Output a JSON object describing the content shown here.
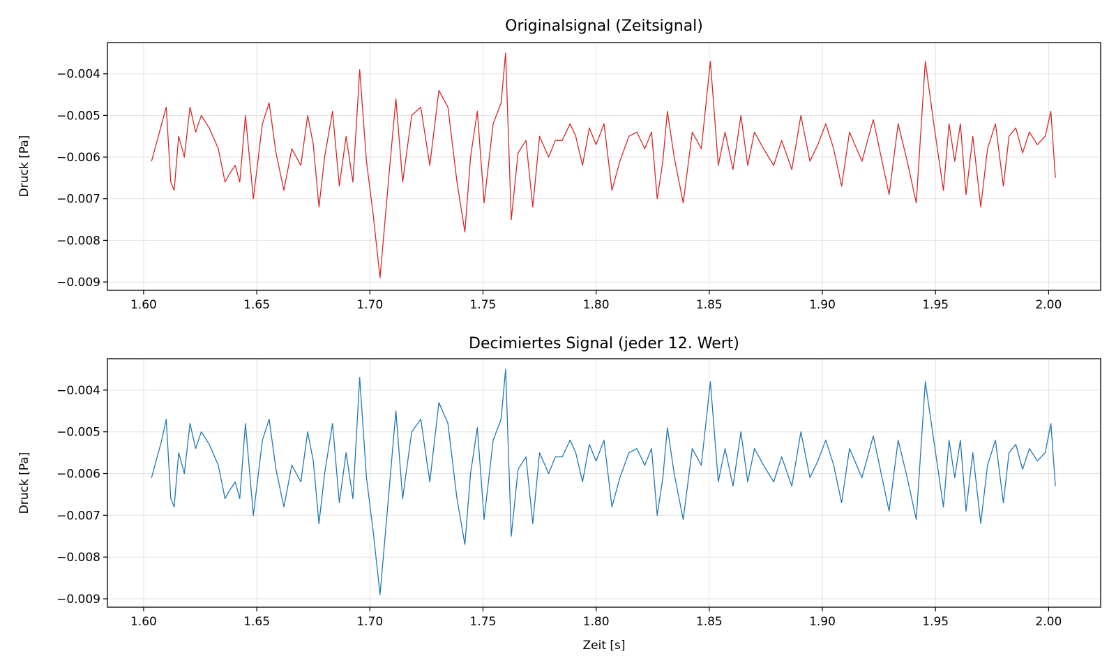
{
  "chart_data": [
    {
      "type": "line",
      "title": "Originalsignal (Zeitsignal)",
      "xlabel": "",
      "ylabel": "Druck [Pa]",
      "xlim": [
        1.584,
        2.023
      ],
      "ylim": [
        -0.0092,
        -0.00325
      ],
      "xticks": [
        1.6,
        1.65,
        1.7,
        1.75,
        1.8,
        1.85,
        1.9,
        1.95,
        2.0
      ],
      "xtick_labels": [
        "1.60",
        "1.65",
        "1.70",
        "1.75",
        "1.80",
        "1.85",
        "1.90",
        "1.95",
        "2.00"
      ],
      "yticks": [
        -0.004,
        -0.005,
        -0.006,
        -0.007,
        -0.008,
        -0.009
      ],
      "ytick_labels": [
        "−0.004",
        "−0.005",
        "−0.006",
        "−0.007",
        "−0.008",
        "−0.009"
      ],
      "grid": true,
      "color": "#d62728",
      "series": [
        {
          "x": [
            1.6035,
            1.606,
            1.608,
            1.61,
            1.612,
            1.6135,
            1.6155,
            1.618,
            1.6205,
            1.623,
            1.6255,
            1.629,
            1.633,
            1.636,
            1.638,
            1.6405,
            1.6425,
            1.645,
            1.6485,
            1.6525,
            1.6555,
            1.6585,
            1.662,
            1.6655,
            1.6695,
            1.6725,
            1.675,
            1.6775,
            1.68,
            1.6835,
            1.6865,
            1.6895,
            1.6925,
            1.6955,
            1.6985,
            1.7015,
            1.7045,
            1.7085,
            1.7115,
            1.7145,
            1.7185,
            1.7225,
            1.7265,
            1.7305,
            1.7345,
            1.7385,
            1.742,
            1.7445,
            1.7475,
            1.7505,
            1.7545,
            1.758,
            1.76,
            1.7625,
            1.7655,
            1.769,
            1.772,
            1.775,
            1.779,
            1.782,
            1.785,
            1.7885,
            1.791,
            1.794,
            1.797,
            1.8,
            1.8035,
            1.807,
            1.8105,
            1.8145,
            1.818,
            1.8215,
            1.8245,
            1.827,
            1.8295,
            1.8315,
            1.8345,
            1.8385,
            1.8425,
            1.8465,
            1.8505,
            1.854,
            1.857,
            1.8605,
            1.864,
            1.867,
            1.87,
            1.874,
            1.8785,
            1.882,
            1.8865,
            1.8905,
            1.8945,
            1.898,
            1.9015,
            1.905,
            1.9085,
            1.912,
            1.9175,
            1.9225,
            1.926,
            1.9295,
            1.9335,
            1.9375,
            1.9415,
            1.9455,
            1.9495,
            1.9535,
            1.956,
            1.9585,
            1.961,
            1.9635,
            1.9665,
            1.97,
            1.973,
            1.9765,
            1.98,
            1.9825,
            1.9855,
            1.9885,
            1.9915,
            1.995,
            1.9985,
            2.001,
            2.003
          ],
          "y": [
            -0.0061,
            -0.0056,
            -0.0052,
            -0.0048,
            -0.0066,
            -0.0068,
            -0.0055,
            -0.006,
            -0.0048,
            -0.0054,
            -0.005,
            -0.0053,
            -0.0058,
            -0.0066,
            -0.0064,
            -0.0062,
            -0.0066,
            -0.005,
            -0.007,
            -0.0052,
            -0.0047,
            -0.0059,
            -0.0068,
            -0.0058,
            -0.0062,
            -0.005,
            -0.0057,
            -0.0072,
            -0.006,
            -0.0049,
            -0.0067,
            -0.0055,
            -0.0066,
            -0.0039,
            -0.0061,
            -0.0074,
            -0.0089,
            -0.0064,
            -0.0046,
            -0.0066,
            -0.005,
            -0.0048,
            -0.0062,
            -0.0044,
            -0.0048,
            -0.0066,
            -0.0078,
            -0.006,
            -0.0049,
            -0.0071,
            -0.0052,
            -0.0047,
            -0.0035,
            -0.0075,
            -0.0059,
            -0.0056,
            -0.0072,
            -0.0055,
            -0.006,
            -0.0056,
            -0.0056,
            -0.0052,
            -0.0055,
            -0.0062,
            -0.0053,
            -0.0057,
            -0.0052,
            -0.0068,
            -0.0061,
            -0.0055,
            -0.0054,
            -0.0058,
            -0.0054,
            -0.007,
            -0.0061,
            -0.0049,
            -0.006,
            -0.0071,
            -0.0054,
            -0.0058,
            -0.0037,
            -0.0062,
            -0.0054,
            -0.0063,
            -0.005,
            -0.0062,
            -0.0054,
            -0.0058,
            -0.0062,
            -0.0056,
            -0.0063,
            -0.005,
            -0.0061,
            -0.0057,
            -0.0052,
            -0.0058,
            -0.0067,
            -0.0054,
            -0.0061,
            -0.0051,
            -0.006,
            -0.0069,
            -0.0052,
            -0.0061,
            -0.0071,
            -0.0037,
            -0.0053,
            -0.0068,
            -0.0052,
            -0.0061,
            -0.0052,
            -0.0069,
            -0.0055,
            -0.0072,
            -0.0058,
            -0.0052,
            -0.0067,
            -0.0055,
            -0.0053,
            -0.0059,
            -0.0054,
            -0.0057,
            -0.0055,
            -0.0049,
            -0.0065
          ]
        }
      ]
    },
    {
      "type": "line",
      "title": "Decimiertes Signal (jeder 12. Wert)",
      "xlabel": "Zeit [s]",
      "ylabel": "Druck [Pa]",
      "xlim": [
        1.584,
        2.023
      ],
      "ylim": [
        -0.0092,
        -0.00325
      ],
      "xticks": [
        1.6,
        1.65,
        1.7,
        1.75,
        1.8,
        1.85,
        1.9,
        1.95,
        2.0
      ],
      "xtick_labels": [
        "1.60",
        "1.65",
        "1.70",
        "1.75",
        "1.80",
        "1.85",
        "1.90",
        "1.95",
        "2.00"
      ],
      "yticks": [
        -0.004,
        -0.005,
        -0.006,
        -0.007,
        -0.008,
        -0.009
      ],
      "ytick_labels": [
        "−0.004",
        "−0.005",
        "−0.006",
        "−0.007",
        "−0.008",
        "−0.009"
      ],
      "grid": true,
      "color": "#1f77b4",
      "series": [
        {
          "x": [
            1.6035,
            1.606,
            1.608,
            1.61,
            1.612,
            1.6135,
            1.6155,
            1.618,
            1.6205,
            1.623,
            1.6255,
            1.629,
            1.633,
            1.636,
            1.638,
            1.6405,
            1.6425,
            1.645,
            1.6485,
            1.6525,
            1.6555,
            1.6585,
            1.662,
            1.6655,
            1.6695,
            1.6725,
            1.675,
            1.6775,
            1.68,
            1.6835,
            1.6865,
            1.6895,
            1.6925,
            1.6955,
            1.6985,
            1.7015,
            1.7045,
            1.7085,
            1.7115,
            1.7145,
            1.7185,
            1.7225,
            1.7265,
            1.7305,
            1.7345,
            1.7385,
            1.742,
            1.7445,
            1.7475,
            1.7505,
            1.7545,
            1.758,
            1.76,
            1.7625,
            1.7655,
            1.769,
            1.772,
            1.775,
            1.779,
            1.782,
            1.785,
            1.7885,
            1.791,
            1.794,
            1.797,
            1.8,
            1.8035,
            1.807,
            1.8105,
            1.8145,
            1.818,
            1.8215,
            1.8245,
            1.827,
            1.8295,
            1.8315,
            1.8345,
            1.8385,
            1.8425,
            1.8465,
            1.8505,
            1.854,
            1.857,
            1.8605,
            1.864,
            1.867,
            1.87,
            1.874,
            1.8785,
            1.882,
            1.8865,
            1.8905,
            1.8945,
            1.898,
            1.9015,
            1.905,
            1.9085,
            1.912,
            1.9175,
            1.9225,
            1.926,
            1.9295,
            1.9335,
            1.9375,
            1.9415,
            1.9455,
            1.9495,
            1.9535,
            1.956,
            1.9585,
            1.961,
            1.9635,
            1.9665,
            1.97,
            1.973,
            1.9765,
            1.98,
            1.9825,
            1.9855,
            1.9885,
            1.9915,
            1.995,
            1.9985,
            2.001,
            2.003
          ],
          "y": [
            -0.0061,
            -0.0056,
            -0.0052,
            -0.0047,
            -0.0066,
            -0.0068,
            -0.0055,
            -0.006,
            -0.0048,
            -0.0054,
            -0.005,
            -0.0053,
            -0.0058,
            -0.0066,
            -0.0064,
            -0.0062,
            -0.0066,
            -0.0048,
            -0.007,
            -0.0052,
            -0.0047,
            -0.0059,
            -0.0068,
            -0.0058,
            -0.0062,
            -0.005,
            -0.0057,
            -0.0072,
            -0.006,
            -0.0048,
            -0.0067,
            -0.0055,
            -0.0066,
            -0.0037,
            -0.0061,
            -0.0074,
            -0.0089,
            -0.0064,
            -0.0045,
            -0.0066,
            -0.005,
            -0.0047,
            -0.0062,
            -0.0043,
            -0.0048,
            -0.0066,
            -0.0077,
            -0.006,
            -0.0049,
            -0.0071,
            -0.0052,
            -0.0047,
            -0.0035,
            -0.0075,
            -0.0059,
            -0.0056,
            -0.0072,
            -0.0055,
            -0.006,
            -0.0056,
            -0.0056,
            -0.0052,
            -0.0055,
            -0.0062,
            -0.0053,
            -0.0057,
            -0.0052,
            -0.0068,
            -0.0061,
            -0.0055,
            -0.0054,
            -0.0058,
            -0.0054,
            -0.007,
            -0.0061,
            -0.0049,
            -0.006,
            -0.0071,
            -0.0054,
            -0.0058,
            -0.0038,
            -0.0062,
            -0.0054,
            -0.0063,
            -0.005,
            -0.0062,
            -0.0054,
            -0.0058,
            -0.0062,
            -0.0056,
            -0.0063,
            -0.005,
            -0.0061,
            -0.0057,
            -0.0052,
            -0.0058,
            -0.0067,
            -0.0054,
            -0.0061,
            -0.0051,
            -0.006,
            -0.0069,
            -0.0052,
            -0.0061,
            -0.0071,
            -0.0038,
            -0.0053,
            -0.0068,
            -0.0052,
            -0.0061,
            -0.0052,
            -0.0069,
            -0.0055,
            -0.0072,
            -0.0058,
            -0.0052,
            -0.0067,
            -0.0055,
            -0.0053,
            -0.0059,
            -0.0054,
            -0.0057,
            -0.0055,
            -0.0048,
            -0.0063
          ]
        }
      ]
    }
  ]
}
